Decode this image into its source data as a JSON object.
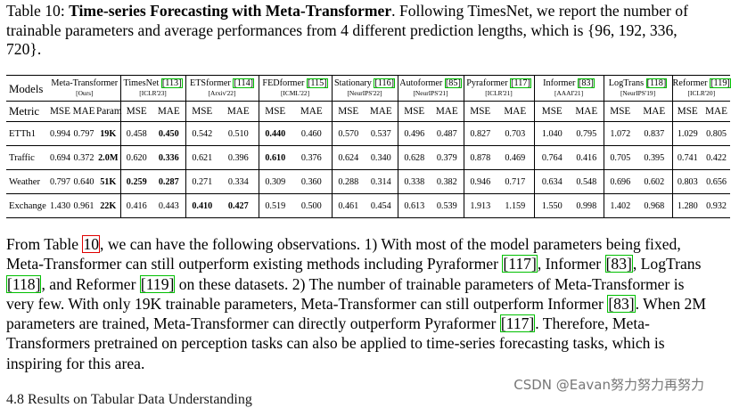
{
  "caption": {
    "label": "Table 10:",
    "title": "Time-series Forecasting with Meta-Transformer",
    "text1": ". Following TimesNet, we report the number of trainable parameters and average performances from 4 different prediction lengths, which is {96, 192, 336, 720}."
  },
  "table": {
    "models_label": "Models",
    "metric_label": "Metric",
    "models": [
      {
        "name": "Meta-Transformer",
        "ref": "",
        "venue": "[Ours]"
      },
      {
        "name": "TimesNet",
        "ref": "[113]",
        "venue": "[ICLR'23]"
      },
      {
        "name": "ETSformer",
        "ref": "[114]",
        "venue": "[Arxiv'22]"
      },
      {
        "name": "FEDformer",
        "ref": "[115]",
        "venue": "[ICML'22]"
      },
      {
        "name": "Stationary",
        "ref": "[116]",
        "venue": "[NeurIPS'22]"
      },
      {
        "name": "Autoformer",
        "ref": "[85]",
        "venue": "[NeurIPS'21]"
      },
      {
        "name": "Pyraformer",
        "ref": "[117]",
        "venue": "[ICLR'21]"
      },
      {
        "name": "Informer",
        "ref": "[83]",
        "venue": "[AAAI'21]"
      },
      {
        "name": "LogTrans",
        "ref": "[118]",
        "venue": "[NeurIPS'19]"
      },
      {
        "name": "Reformer",
        "ref": "[119]",
        "venue": "[ICLR'20]"
      }
    ],
    "metrics_meta": [
      "MSE",
      "MAE",
      "Param"
    ],
    "metrics": [
      "MSE",
      "MAE"
    ],
    "rows": [
      {
        "dataset": "ETTh1",
        "meta": [
          "0.994",
          "0.797",
          "19K"
        ],
        "vals": [
          [
            "0.458",
            "0.450"
          ],
          [
            "0.542",
            "0.510"
          ],
          [
            "0.440",
            "0.460"
          ],
          [
            "0.570",
            "0.537"
          ],
          [
            "0.496",
            "0.487"
          ],
          [
            "0.827",
            "0.703"
          ],
          [
            "1.040",
            "0.795"
          ],
          [
            "1.072",
            "0.837"
          ],
          [
            "1.029",
            "0.805"
          ]
        ]
      },
      {
        "dataset": "Traffic",
        "meta": [
          "0.694",
          "0.372",
          "2.0M"
        ],
        "vals": [
          [
            "0.620",
            "0.336"
          ],
          [
            "0.621",
            "0.396"
          ],
          [
            "0.610",
            "0.376"
          ],
          [
            "0.624",
            "0.340"
          ],
          [
            "0.628",
            "0.379"
          ],
          [
            "0.878",
            "0.469"
          ],
          [
            "0.764",
            "0.416"
          ],
          [
            "0.705",
            "0.395"
          ],
          [
            "0.741",
            "0.422"
          ]
        ]
      },
      {
        "dataset": "Weather",
        "meta": [
          "0.797",
          "0.640",
          "51K"
        ],
        "vals": [
          [
            "0.259",
            "0.287"
          ],
          [
            "0.271",
            "0.334"
          ],
          [
            "0.309",
            "0.360"
          ],
          [
            "0.288",
            "0.314"
          ],
          [
            "0.338",
            "0.382"
          ],
          [
            "0.946",
            "0.717"
          ],
          [
            "0.634",
            "0.548"
          ],
          [
            "0.696",
            "0.602"
          ],
          [
            "0.803",
            "0.656"
          ]
        ]
      },
      {
        "dataset": "Exchange",
        "meta": [
          "1.430",
          "0.961",
          "22K"
        ],
        "vals": [
          [
            "0.416",
            "0.443"
          ],
          [
            "0.410",
            "0.427"
          ],
          [
            "0.519",
            "0.500"
          ],
          [
            "0.461",
            "0.454"
          ],
          [
            "0.613",
            "0.539"
          ],
          [
            "1.913",
            "1.159"
          ],
          [
            "1.550",
            "0.998"
          ],
          [
            "1.402",
            "0.968"
          ],
          [
            "1.280",
            "0.932"
          ]
        ]
      }
    ]
  },
  "body": {
    "p1a": "From Table ",
    "p1ref": "10",
    "p1b": ", we can have the following observations. 1) With most of the model parameters being fixed, Meta-Transformer can still outperform existing methods including Pyraformer ",
    "r117": "[117]",
    "p1c": ", Informer ",
    "r83": "[83]",
    "p1d": ", LogTrans ",
    "r118": "[118]",
    "p1e": ", and Reformer ",
    "r119": "[119]",
    "p1f": " on these datasets. 2) The number of trainable parameters of Meta-Transformer is very few. With only 19K trainable parameters, Meta-Transformer can still outperform Informer ",
    "r83b": "[83]",
    "p1g": ". When 2M parameters are trained, Meta-Transformer can directly outperform Pyraformer ",
    "r117b": "[117]",
    "p1h": ". Therefore, Meta-Transformers pretrained on perception tasks can also be applied to time-series forecasting tasks, which is inspiring for this area."
  },
  "watermark": "CSDN @Eavan努力努力再努力",
  "next_heading": "4.8   Results on Tabular Data Understanding"
}
